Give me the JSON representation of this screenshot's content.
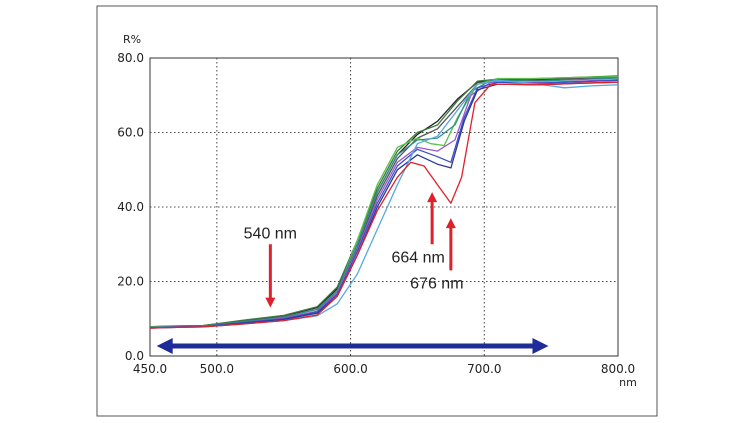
{
  "chart_data": {
    "type": "line",
    "title": "",
    "xlabel": "nm",
    "ylabel": "R%",
    "xlim": [
      450,
      800
    ],
    "ylim": [
      0,
      80
    ],
    "grid": true,
    "x_ticks": [
      450,
      500,
      600,
      700,
      800
    ],
    "x_tick_labels": [
      "450.0",
      "500.0",
      "600.0",
      "700.0",
      "800.0"
    ],
    "y_ticks": [
      0,
      20,
      40,
      60,
      80
    ],
    "y_tick_labels": [
      "0.0",
      "20.0",
      "40.0",
      "60.0",
      "80.0"
    ],
    "series": [
      {
        "name": "black",
        "color": "#222222",
        "points": [
          [
            450,
            7.8
          ],
          [
            470,
            8
          ],
          [
            490,
            8.2
          ],
          [
            520,
            9.5
          ],
          [
            550,
            10.8
          ],
          [
            575,
            13
          ],
          [
            590,
            18
          ],
          [
            605,
            30
          ],
          [
            620,
            44
          ],
          [
            635,
            54
          ],
          [
            650,
            59.5
          ],
          [
            665,
            63
          ],
          [
            680,
            69
          ],
          [
            695,
            73.5
          ],
          [
            710,
            74
          ],
          [
            740,
            74.2
          ],
          [
            770,
            74.6
          ],
          [
            800,
            75
          ]
        ]
      },
      {
        "name": "gray",
        "color": "#555555",
        "points": [
          [
            450,
            7.7
          ],
          [
            470,
            8
          ],
          [
            490,
            8.1
          ],
          [
            520,
            9.3
          ],
          [
            550,
            10.6
          ],
          [
            575,
            12.5
          ],
          [
            590,
            17
          ],
          [
            605,
            29
          ],
          [
            620,
            43
          ],
          [
            635,
            53
          ],
          [
            650,
            58.5
          ],
          [
            665,
            61
          ],
          [
            680,
            67
          ],
          [
            695,
            73
          ],
          [
            710,
            74
          ],
          [
            740,
            74
          ],
          [
            770,
            74.5
          ],
          [
            800,
            74.8
          ]
        ]
      },
      {
        "name": "darkgreen",
        "color": "#3a7a3a",
        "points": [
          [
            450,
            7.9
          ],
          [
            470,
            8.1
          ],
          [
            490,
            8.2
          ],
          [
            520,
            9.6
          ],
          [
            550,
            10.9
          ],
          [
            575,
            13.2
          ],
          [
            590,
            18.5
          ],
          [
            605,
            31
          ],
          [
            620,
            45
          ],
          [
            635,
            55
          ],
          [
            650,
            60
          ],
          [
            665,
            62
          ],
          [
            680,
            68.5
          ],
          [
            695,
            73.8
          ],
          [
            710,
            74.3
          ],
          [
            740,
            74.5
          ],
          [
            770,
            74.8
          ],
          [
            800,
            75.2
          ]
        ]
      },
      {
        "name": "lightgreen",
        "color": "#5cc04a",
        "points": [
          [
            450,
            7.8
          ],
          [
            470,
            8
          ],
          [
            490,
            7.9
          ],
          [
            520,
            9
          ],
          [
            550,
            10
          ],
          [
            575,
            12
          ],
          [
            590,
            17
          ],
          [
            605,
            31
          ],
          [
            620,
            46
          ],
          [
            635,
            56
          ],
          [
            650,
            58.5
          ],
          [
            660,
            57
          ],
          [
            670,
            56.5
          ],
          [
            680,
            64
          ],
          [
            695,
            73
          ],
          [
            710,
            74.5
          ],
          [
            740,
            74.5
          ],
          [
            770,
            74.8
          ],
          [
            800,
            75
          ]
        ]
      },
      {
        "name": "teal",
        "color": "#2f8f8f",
        "points": [
          [
            450,
            7.7
          ],
          [
            470,
            7.9
          ],
          [
            490,
            8
          ],
          [
            520,
            9.2
          ],
          [
            550,
            10.4
          ],
          [
            575,
            12.5
          ],
          [
            590,
            17.5
          ],
          [
            605,
            30
          ],
          [
            620,
            44
          ],
          [
            635,
            54
          ],
          [
            650,
            58
          ],
          [
            665,
            58.5
          ],
          [
            678,
            62
          ],
          [
            690,
            71
          ],
          [
            705,
            74
          ],
          [
            740,
            73.8
          ],
          [
            770,
            74.2
          ],
          [
            800,
            74.6
          ]
        ]
      },
      {
        "name": "violet",
        "color": "#9a5ad0",
        "points": [
          [
            450,
            7.6
          ],
          [
            470,
            7.8
          ],
          [
            490,
            7.9
          ],
          [
            520,
            9
          ],
          [
            550,
            10.2
          ],
          [
            575,
            12
          ],
          [
            590,
            17
          ],
          [
            605,
            28.5
          ],
          [
            620,
            42
          ],
          [
            635,
            52
          ],
          [
            650,
            56
          ],
          [
            665,
            55
          ],
          [
            678,
            58
          ],
          [
            690,
            70
          ],
          [
            705,
            73.5
          ],
          [
            740,
            73.4
          ],
          [
            770,
            73.8
          ],
          [
            800,
            74.2
          ]
        ]
      },
      {
        "name": "blue",
        "color": "#3d4fc2",
        "points": [
          [
            450,
            7.6
          ],
          [
            470,
            7.8
          ],
          [
            490,
            7.9
          ],
          [
            520,
            9
          ],
          [
            550,
            10
          ],
          [
            575,
            11.8
          ],
          [
            590,
            16.5
          ],
          [
            605,
            28
          ],
          [
            620,
            41
          ],
          [
            635,
            51
          ],
          [
            650,
            55.5
          ],
          [
            665,
            53.5
          ],
          [
            675,
            52
          ],
          [
            685,
            64
          ],
          [
            695,
            72
          ],
          [
            710,
            73.5
          ],
          [
            740,
            73.2
          ],
          [
            770,
            73.6
          ],
          [
            800,
            74
          ]
        ]
      },
      {
        "name": "navy",
        "color": "#2a3a9a",
        "points": [
          [
            450,
            7.5
          ],
          [
            470,
            7.7
          ],
          [
            490,
            7.8
          ],
          [
            520,
            8.8
          ],
          [
            550,
            9.8
          ],
          [
            575,
            11.5
          ],
          [
            590,
            16
          ],
          [
            605,
            27
          ],
          [
            620,
            40
          ],
          [
            635,
            50
          ],
          [
            650,
            54
          ],
          [
            665,
            51.5
          ],
          [
            675,
            50.5
          ],
          [
            685,
            63
          ],
          [
            695,
            71.5
          ],
          [
            710,
            73
          ],
          [
            740,
            72.8
          ],
          [
            770,
            73.2
          ],
          [
            800,
            73.5
          ]
        ]
      },
      {
        "name": "lightblue",
        "color": "#5aa8e0",
        "points": [
          [
            450,
            7.5
          ],
          [
            470,
            7.7
          ],
          [
            490,
            7.8
          ],
          [
            520,
            8.6
          ],
          [
            550,
            9.5
          ],
          [
            575,
            10.8
          ],
          [
            590,
            14
          ],
          [
            605,
            22
          ],
          [
            620,
            34
          ],
          [
            635,
            46
          ],
          [
            650,
            57
          ],
          [
            665,
            59
          ],
          [
            680,
            66
          ],
          [
            695,
            73
          ],
          [
            710,
            74
          ],
          [
            740,
            73
          ],
          [
            760,
            72
          ],
          [
            780,
            72.5
          ],
          [
            800,
            72.8
          ]
        ]
      },
      {
        "name": "red",
        "color": "#e0202a",
        "points": [
          [
            450,
            7.5
          ],
          [
            470,
            7.7
          ],
          [
            490,
            7.8
          ],
          [
            520,
            8.6
          ],
          [
            550,
            9.5
          ],
          [
            575,
            11
          ],
          [
            590,
            16
          ],
          [
            605,
            27
          ],
          [
            620,
            39
          ],
          [
            635,
            48
          ],
          [
            645,
            52
          ],
          [
            655,
            51
          ],
          [
            665,
            46
          ],
          [
            675,
            41
          ],
          [
            683,
            48
          ],
          [
            693,
            68
          ],
          [
            705,
            73
          ],
          [
            740,
            72.8
          ],
          [
            770,
            73.2
          ],
          [
            800,
            73.5
          ]
        ]
      }
    ],
    "annotations": [
      {
        "text": "540 nm",
        "arrow_x": 540,
        "arrow_y_from": 30,
        "arrow_y_to": 13,
        "direction": "down"
      },
      {
        "text": "664 nm",
        "arrow_x": 661,
        "arrow_y_from": 30,
        "arrow_y_to": 44,
        "direction": "up"
      },
      {
        "text": "676 nm",
        "arrow_x": 675,
        "arrow_y_from": 23,
        "arrow_y_to": 37,
        "direction": "up"
      },
      {
        "text": "",
        "type": "double-arrow",
        "x_from": 455,
        "x_to": 748,
        "y": 2.7,
        "color": "#1e2c9a"
      }
    ]
  }
}
